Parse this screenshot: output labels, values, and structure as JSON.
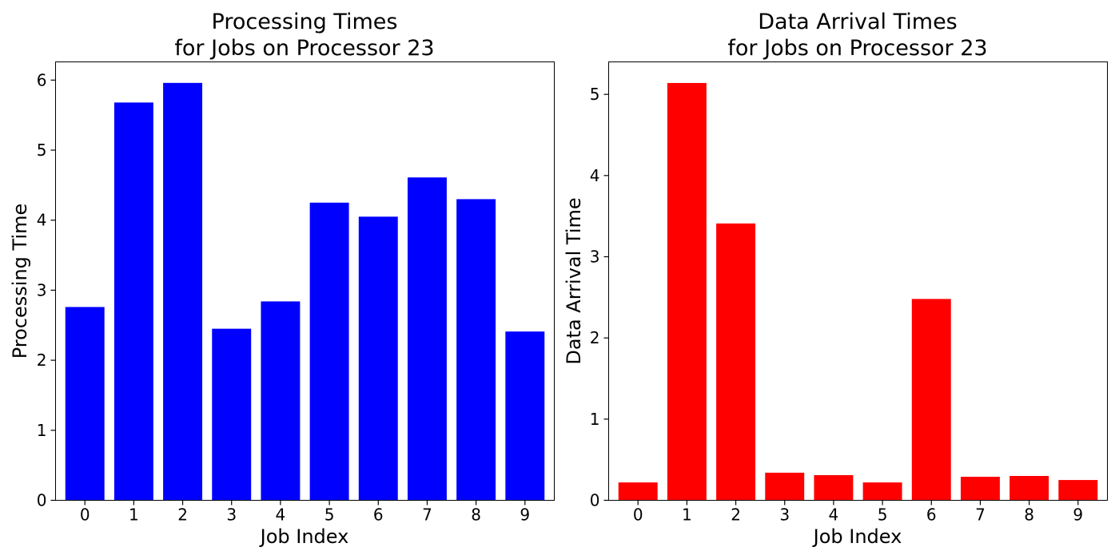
{
  "chart_data": [
    {
      "type": "bar",
      "title_lines": [
        "Processing Times",
        "for Jobs on Processor 23"
      ],
      "xlabel": "Job Index",
      "ylabel": "Processing Time",
      "categories": [
        "0",
        "1",
        "2",
        "3",
        "4",
        "5",
        "6",
        "7",
        "8",
        "9"
      ],
      "values": [
        2.76,
        5.68,
        5.96,
        2.45,
        2.84,
        4.25,
        4.05,
        4.61,
        4.3,
        2.41
      ],
      "ylim": [
        0,
        6.26
      ],
      "yticks": [
        0,
        1,
        2,
        3,
        4,
        5,
        6
      ],
      "color": "#0000ff",
      "grid": false
    },
    {
      "type": "bar",
      "title_lines": [
        "Data Arrival Times",
        "for Jobs on Processor 23"
      ],
      "xlabel": "Job Index",
      "ylabel": "Data Arrival Time",
      "categories": [
        "0",
        "1",
        "2",
        "3",
        "4",
        "5",
        "6",
        "7",
        "8",
        "9"
      ],
      "values": [
        0.22,
        5.14,
        3.41,
        0.34,
        0.31,
        0.22,
        2.48,
        0.29,
        0.3,
        0.25
      ],
      "ylim": [
        0,
        5.4
      ],
      "yticks": [
        0,
        1,
        2,
        3,
        4,
        5
      ],
      "color": "#ff0000",
      "grid": false
    }
  ]
}
